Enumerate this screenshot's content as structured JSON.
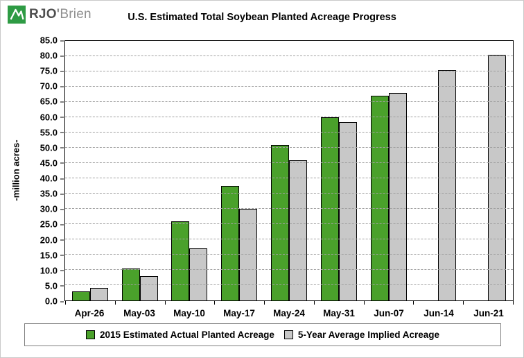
{
  "logo": {
    "bold": "RJO",
    "apostrophe": "'",
    "light": "Brien",
    "square_color": "#2e9b44"
  },
  "title": "U.S. Estimated Total Soybean Planted Acreage Progress",
  "chart_data": {
    "type": "bar",
    "title": "U.S. Estimated Total Soybean Planted Acreage Progress",
    "categories": [
      "Apr-26",
      "May-03",
      "May-10",
      "May-17",
      "May-24",
      "May-31",
      "Jun-07",
      "Jun-14",
      "Jun-21"
    ],
    "series": [
      {
        "name": "2015 Estimated Actual Planted Acreage",
        "color": "#4aa12b",
        "border": "#000000",
        "values": [
          3.0,
          10.5,
          26.0,
          37.5,
          51.0,
          60.0,
          67.0,
          null,
          null
        ]
      },
      {
        "name": "5-Year Average Implied Acreage",
        "color": "#c8c8c8",
        "border": "#000000",
        "values": [
          4.0,
          8.0,
          17.0,
          30.0,
          46.0,
          58.5,
          68.0,
          75.5,
          80.5
        ]
      }
    ],
    "xlabel": "",
    "ylabel": "-million acres-",
    "ylim": [
      0,
      85
    ],
    "ytick_step": 5,
    "ytick_decimals": 1,
    "grid": true,
    "legend_position": "bottom"
  }
}
